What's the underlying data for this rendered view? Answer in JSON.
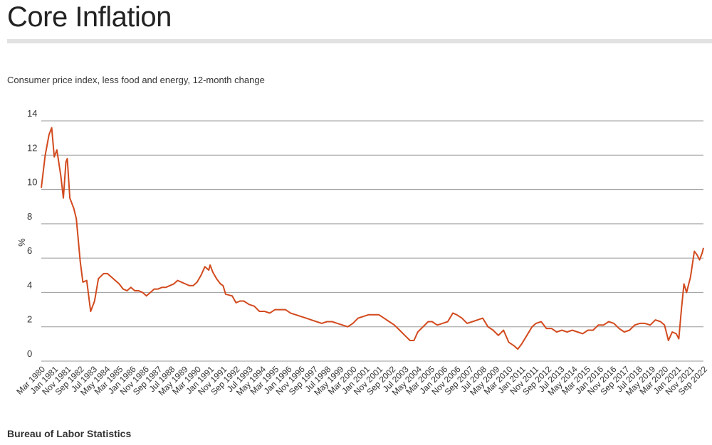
{
  "header": {
    "title": "Core Inflation"
  },
  "subtitle": "Consumer price index, less food and energy, 12-month change",
  "source": "Bureau of Labor Statistics",
  "chart_data": {
    "type": "line",
    "title": "Core Inflation",
    "subtitle": "Consumer price index, less food and energy, 12-month change",
    "xlabel": "",
    "ylabel": "%",
    "ylim": [
      0,
      14
    ],
    "yticks": [
      0,
      2,
      4,
      6,
      8,
      10,
      12,
      14
    ],
    "xlim": [
      "Mar 1980",
      "Sep 2022"
    ],
    "grid": true,
    "legend": "none",
    "line_color": "#d24a1e",
    "xtick_labels": [
      "Mar 1980",
      "Jan 1981",
      "Nov 1981",
      "Sep 1982",
      "Jul 1983",
      "May 1984",
      "Mar 1985",
      "Jan 1986",
      "Nov 1986",
      "Sep 1987",
      "Jul 1988",
      "May 1989",
      "Mar 1990",
      "Jan 1991",
      "Nov 1991",
      "Sep 1992",
      "Jul 1993",
      "May 1994",
      "Mar 1995",
      "Jan 1996",
      "Nov 1996",
      "Sep 1997",
      "Jul 1998",
      "May 1999",
      "Mar 2000",
      "Jan 2001",
      "Nov 2001",
      "Sep 2002",
      "Jul 2003",
      "May 2004",
      "Mar 2005",
      "Jan 2006",
      "Nov 2006",
      "Sep 2007",
      "Jul 2008",
      "May 2009",
      "Mar 2010",
      "Jan 2011",
      "Nov 2011",
      "Sep 2012",
      "Jul 2013",
      "May 2014",
      "Mar 2015",
      "Jan 2016",
      "Nov 2016",
      "Sep 2017",
      "Jul 2018",
      "May 2019",
      "Mar 2020",
      "Jan 2021",
      "Nov 2021",
      "Sep 2022"
    ],
    "series": [
      {
        "points": [
          [
            "1980-03",
            10.1
          ],
          [
            "1980-06",
            12.0
          ],
          [
            "1980-09",
            13.2
          ],
          [
            "1980-11",
            13.6
          ],
          [
            "1981-01",
            11.9
          ],
          [
            "1981-03",
            12.3
          ],
          [
            "1981-06",
            10.8
          ],
          [
            "1981-08",
            9.5
          ],
          [
            "1981-10",
            11.6
          ],
          [
            "1981-11",
            11.8
          ],
          [
            "1982-01",
            9.5
          ],
          [
            "1982-04",
            8.9
          ],
          [
            "1982-06",
            8.3
          ],
          [
            "1982-09",
            5.8
          ],
          [
            "1982-11",
            4.6
          ],
          [
            "1983-02",
            4.7
          ],
          [
            "1983-05",
            2.9
          ],
          [
            "1983-08",
            3.5
          ],
          [
            "1983-11",
            4.8
          ],
          [
            "1984-03",
            5.1
          ],
          [
            "1984-06",
            5.1
          ],
          [
            "1984-09",
            4.9
          ],
          [
            "1984-12",
            4.7
          ],
          [
            "1985-03",
            4.5
          ],
          [
            "1985-06",
            4.2
          ],
          [
            "1985-09",
            4.1
          ],
          [
            "1985-12",
            4.3
          ],
          [
            "1986-03",
            4.1
          ],
          [
            "1986-06",
            4.1
          ],
          [
            "1986-09",
            4.0
          ],
          [
            "1986-12",
            3.8
          ],
          [
            "1987-03",
            4.0
          ],
          [
            "1987-06",
            4.2
          ],
          [
            "1987-09",
            4.2
          ],
          [
            "1987-12",
            4.3
          ],
          [
            "1988-03",
            4.3
          ],
          [
            "1988-06",
            4.4
          ],
          [
            "1988-09",
            4.5
          ],
          [
            "1988-12",
            4.7
          ],
          [
            "1989-03",
            4.6
          ],
          [
            "1989-06",
            4.5
          ],
          [
            "1989-09",
            4.4
          ],
          [
            "1989-12",
            4.4
          ],
          [
            "1990-03",
            4.6
          ],
          [
            "1990-06",
            5.0
          ],
          [
            "1990-09",
            5.5
          ],
          [
            "1990-12",
            5.3
          ],
          [
            "1991-01",
            5.6
          ],
          [
            "1991-03",
            5.2
          ],
          [
            "1991-06",
            4.8
          ],
          [
            "1991-09",
            4.5
          ],
          [
            "1991-11",
            4.4
          ],
          [
            "1992-01",
            3.9
          ],
          [
            "1992-06",
            3.8
          ],
          [
            "1992-09",
            3.4
          ],
          [
            "1992-12",
            3.5
          ],
          [
            "1993-03",
            3.5
          ],
          [
            "1993-07",
            3.3
          ],
          [
            "1993-11",
            3.2
          ],
          [
            "1994-03",
            2.9
          ],
          [
            "1994-07",
            2.9
          ],
          [
            "1994-11",
            2.8
          ],
          [
            "1995-03",
            3.0
          ],
          [
            "1995-07",
            3.0
          ],
          [
            "1995-11",
            3.0
          ],
          [
            "1996-03",
            2.8
          ],
          [
            "1996-07",
            2.7
          ],
          [
            "1996-11",
            2.6
          ],
          [
            "1997-03",
            2.5
          ],
          [
            "1997-07",
            2.4
          ],
          [
            "1997-11",
            2.3
          ],
          [
            "1998-03",
            2.2
          ],
          [
            "1998-07",
            2.3
          ],
          [
            "1998-11",
            2.3
          ],
          [
            "1999-03",
            2.2
          ],
          [
            "1999-07",
            2.1
          ],
          [
            "1999-11",
            2.0
          ],
          [
            "2000-03",
            2.2
          ],
          [
            "2000-07",
            2.5
          ],
          [
            "2000-11",
            2.6
          ],
          [
            "2001-03",
            2.7
          ],
          [
            "2001-07",
            2.7
          ],
          [
            "2001-11",
            2.7
          ],
          [
            "2002-03",
            2.5
          ],
          [
            "2002-07",
            2.3
          ],
          [
            "2002-11",
            2.1
          ],
          [
            "2003-03",
            1.8
          ],
          [
            "2003-07",
            1.5
          ],
          [
            "2003-11",
            1.2
          ],
          [
            "2004-02",
            1.2
          ],
          [
            "2004-05",
            1.7
          ],
          [
            "2004-09",
            2.0
          ],
          [
            "2005-01",
            2.3
          ],
          [
            "2005-04",
            2.3
          ],
          [
            "2005-08",
            2.1
          ],
          [
            "2005-12",
            2.2
          ],
          [
            "2006-04",
            2.3
          ],
          [
            "2006-08",
            2.8
          ],
          [
            "2006-11",
            2.7
          ],
          [
            "2007-03",
            2.5
          ],
          [
            "2007-07",
            2.2
          ],
          [
            "2007-11",
            2.3
          ],
          [
            "2008-03",
            2.4
          ],
          [
            "2008-07",
            2.5
          ],
          [
            "2008-11",
            2.0
          ],
          [
            "2009-03",
            1.8
          ],
          [
            "2009-07",
            1.5
          ],
          [
            "2009-11",
            1.8
          ],
          [
            "2010-03",
            1.1
          ],
          [
            "2010-07",
            0.9
          ],
          [
            "2010-10",
            0.7
          ],
          [
            "2011-01",
            1.0
          ],
          [
            "2011-05",
            1.5
          ],
          [
            "2011-09",
            2.0
          ],
          [
            "2011-12",
            2.2
          ],
          [
            "2012-04",
            2.3
          ],
          [
            "2012-08",
            1.9
          ],
          [
            "2012-12",
            1.9
          ],
          [
            "2013-04",
            1.7
          ],
          [
            "2013-08",
            1.8
          ],
          [
            "2013-12",
            1.7
          ],
          [
            "2014-04",
            1.8
          ],
          [
            "2014-08",
            1.7
          ],
          [
            "2014-12",
            1.6
          ],
          [
            "2015-04",
            1.8
          ],
          [
            "2015-08",
            1.8
          ],
          [
            "2015-12",
            2.1
          ],
          [
            "2016-04",
            2.1
          ],
          [
            "2016-08",
            2.3
          ],
          [
            "2016-12",
            2.2
          ],
          [
            "2017-04",
            1.9
          ],
          [
            "2017-08",
            1.7
          ],
          [
            "2017-12",
            1.8
          ],
          [
            "2018-04",
            2.1
          ],
          [
            "2018-08",
            2.2
          ],
          [
            "2018-12",
            2.2
          ],
          [
            "2019-04",
            2.1
          ],
          [
            "2019-08",
            2.4
          ],
          [
            "2019-12",
            2.3
          ],
          [
            "2020-03",
            2.1
          ],
          [
            "2020-06",
            1.2
          ],
          [
            "2020-09",
            1.7
          ],
          [
            "2020-12",
            1.6
          ],
          [
            "2021-02",
            1.3
          ],
          [
            "2021-04",
            3.0
          ],
          [
            "2021-06",
            4.5
          ],
          [
            "2021-08",
            4.0
          ],
          [
            "2021-11",
            4.9
          ],
          [
            "2022-02",
            6.4
          ],
          [
            "2022-04",
            6.2
          ],
          [
            "2022-06",
            5.9
          ],
          [
            "2022-08",
            6.3
          ],
          [
            "2022-09",
            6.6
          ]
        ]
      }
    ]
  }
}
